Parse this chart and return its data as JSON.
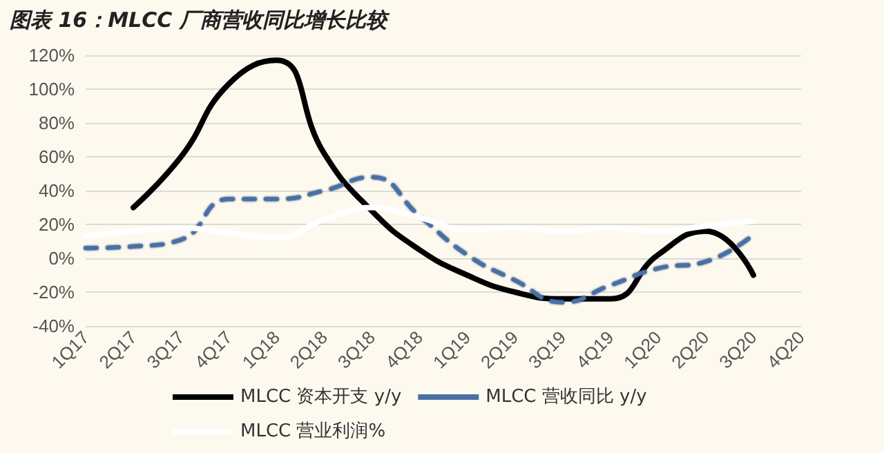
{
  "chart_data": {
    "type": "line",
    "title": "图表 16：MLCC 厂商营收同比增长比较",
    "categories": [
      "1Q17",
      "2Q17",
      "3Q17",
      "4Q17",
      "1Q18",
      "2Q18",
      "3Q18",
      "4Q18",
      "1Q19",
      "2Q19",
      "3Q19",
      "4Q19",
      "1Q20",
      "2Q20",
      "3Q20",
      "4Q20"
    ],
    "series": [
      {
        "name": "MLCC 资本开支 y/y",
        "color": "#000000",
        "line_style": "solid",
        "values": [
          null,
          30,
          60,
          103,
          117,
          62,
          28,
          5,
          -10,
          -20,
          -24,
          -24,
          2,
          16,
          -10,
          null
        ]
      },
      {
        "name": "MLCC 营收同比 y/y",
        "color": "#4a6fa5",
        "line_style": "dashed",
        "values": [
          6,
          7,
          11,
          35,
          35,
          40,
          48,
          25,
          2,
          -13,
          -26,
          -16,
          -6,
          -2,
          14,
          null
        ]
      },
      {
        "name": "MLCC 营业利润%",
        "color": "#ffffff",
        "line_style": "solid",
        "values": [
          13,
          16,
          18,
          15,
          12,
          23,
          30,
          24,
          17,
          18,
          16,
          18,
          16,
          19,
          22,
          null
        ]
      }
    ],
    "ylim": [
      -40,
      120
    ],
    "yticks": [
      {
        "value": -40,
        "label": "-40%"
      },
      {
        "value": -20,
        "label": "-20%"
      },
      {
        "value": 0,
        "label": "0%"
      },
      {
        "value": 20,
        "label": "20%"
      },
      {
        "value": 40,
        "label": "40%"
      },
      {
        "value": 60,
        "label": "60%"
      },
      {
        "value": 80,
        "label": "80%"
      },
      {
        "value": 100,
        "label": "100%"
      },
      {
        "value": 120,
        "label": "120%"
      }
    ],
    "grid": "y",
    "legend": "bottom",
    "marker": "none"
  }
}
